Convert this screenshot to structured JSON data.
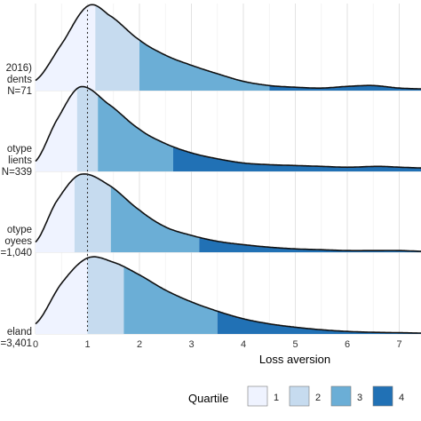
{
  "chart_data": {
    "type": "ridgeline-density",
    "xlabel": "Loss aversion",
    "xlim": [
      0,
      7.5
    ],
    "x_ticks": [
      0,
      1,
      2,
      3,
      4,
      5,
      6,
      7
    ],
    "reference_line": 1,
    "grid": true,
    "legend": {
      "title": "Quartile",
      "position": "bottom-right",
      "entries": [
        "1",
        "2",
        "3",
        "4"
      ],
      "colors": [
        "#eff3ff",
        "#c6dbef",
        "#6baed6",
        "#2171b5"
      ]
    },
    "ridges": [
      {
        "label_lines": [
          "2016)",
          "dents",
          "N=71"
        ],
        "quartiles": [
          1.15,
          2.0,
          4.5
        ],
        "peak_x": 1.1,
        "peak_height": 1.0,
        "curve": [
          [
            0,
            0.12
          ],
          [
            0.5,
            0.55
          ],
          [
            1.0,
            1.0
          ],
          [
            1.4,
            0.9
          ],
          [
            2.0,
            0.6
          ],
          [
            2.5,
            0.42
          ],
          [
            3.0,
            0.3
          ],
          [
            3.5,
            0.2
          ],
          [
            4.0,
            0.11
          ],
          [
            4.5,
            0.06
          ],
          [
            5.0,
            0.04
          ],
          [
            5.5,
            0.03
          ],
          [
            6.0,
            0.05
          ],
          [
            6.5,
            0.06
          ],
          [
            7.0,
            0.03
          ],
          [
            7.5,
            0.02
          ]
        ]
      },
      {
        "label_lines": [
          "otype",
          "lients",
          "N=339"
        ],
        "quartiles": [
          0.8,
          1.2,
          2.65
        ],
        "peak_x": 0.85,
        "peak_height": 1.0,
        "curve": [
          [
            0,
            0.12
          ],
          [
            0.4,
            0.6
          ],
          [
            0.85,
            1.0
          ],
          [
            1.4,
            0.8
          ],
          [
            2.0,
            0.5
          ],
          [
            2.5,
            0.33
          ],
          [
            3.0,
            0.22
          ],
          [
            3.5,
            0.15
          ],
          [
            4.0,
            0.1
          ],
          [
            4.5,
            0.08
          ],
          [
            5.0,
            0.07
          ],
          [
            5.5,
            0.06
          ],
          [
            6.0,
            0.05
          ],
          [
            6.6,
            0.06
          ],
          [
            7.0,
            0.05
          ],
          [
            7.5,
            0.04
          ]
        ]
      },
      {
        "label_lines": [
          "otype",
          "oyees",
          "=1,040"
        ],
        "quartiles": [
          0.75,
          1.45,
          3.15
        ],
        "peak_x": 0.85,
        "peak_height": 0.92,
        "curve": [
          [
            0,
            0.12
          ],
          [
            0.4,
            0.6
          ],
          [
            0.85,
            0.92
          ],
          [
            1.4,
            0.8
          ],
          [
            2.0,
            0.5
          ],
          [
            2.5,
            0.3
          ],
          [
            3.0,
            0.2
          ],
          [
            3.5,
            0.13
          ],
          [
            4.0,
            0.09
          ],
          [
            4.5,
            0.06
          ],
          [
            5.0,
            0.04
          ],
          [
            5.5,
            0.03
          ],
          [
            6.0,
            0.02
          ],
          [
            6.5,
            0.02
          ],
          [
            7.0,
            0.02
          ],
          [
            7.5,
            0.01
          ]
        ]
      },
      {
        "label_lines": [
          "eland",
          "=3,401"
        ],
        "quartiles": [
          1.0,
          1.7,
          3.5
        ],
        "peak_x": 1.0,
        "peak_height": 0.9,
        "curve": [
          [
            0,
            0.12
          ],
          [
            0.5,
            0.6
          ],
          [
            1.0,
            0.9
          ],
          [
            1.5,
            0.85
          ],
          [
            2.0,
            0.7
          ],
          [
            2.5,
            0.52
          ],
          [
            3.0,
            0.38
          ],
          [
            3.5,
            0.27
          ],
          [
            4.0,
            0.18
          ],
          [
            4.5,
            0.12
          ],
          [
            5.0,
            0.08
          ],
          [
            5.5,
            0.05
          ],
          [
            6.0,
            0.03
          ],
          [
            6.5,
            0.02
          ],
          [
            7.0,
            0.015
          ],
          [
            7.5,
            0.01
          ]
        ]
      }
    ]
  }
}
